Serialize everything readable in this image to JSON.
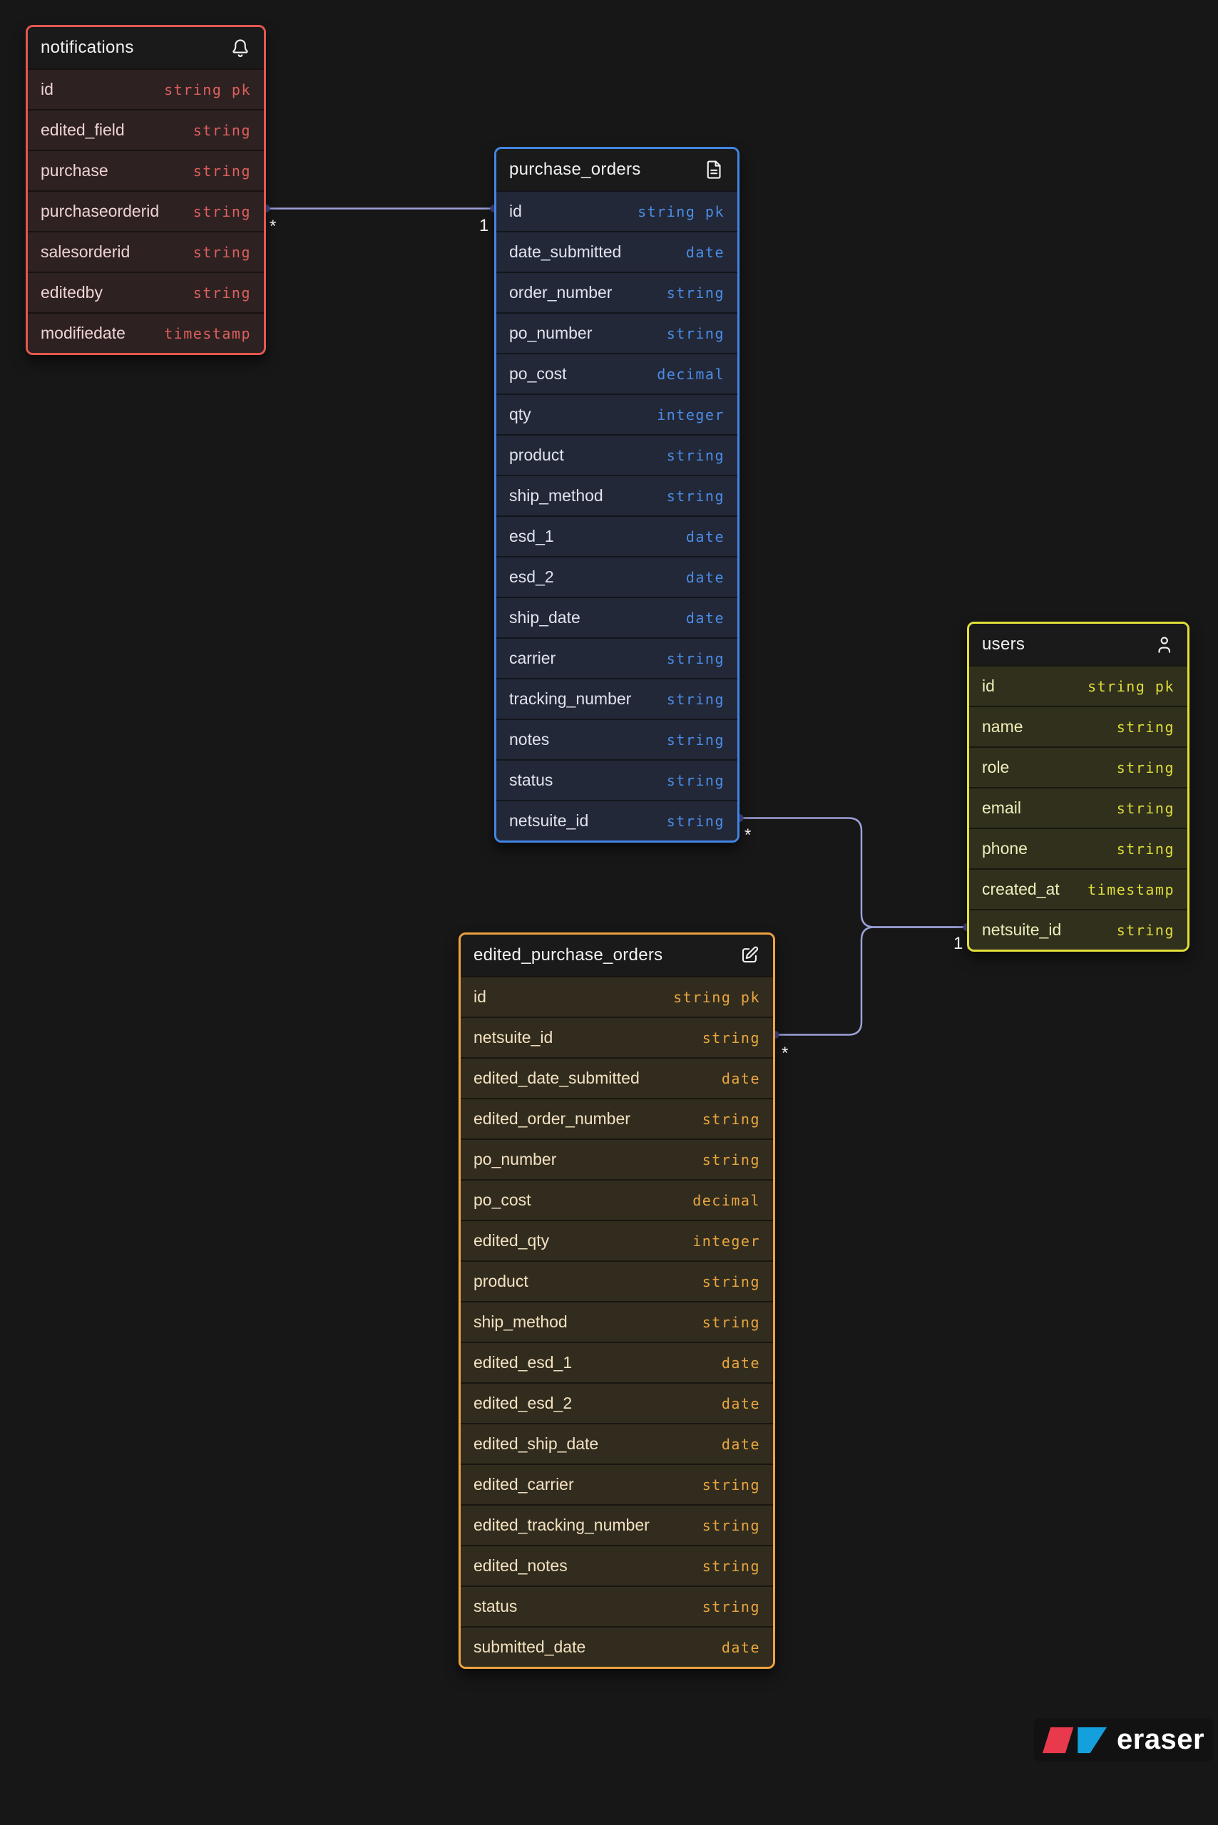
{
  "canvas": {
    "background": "#171717",
    "tool_brand": "eraser"
  },
  "tables": [
    {
      "title": "notifications",
      "icon": "bell-icon",
      "colors": {
        "accent": "#e4574f",
        "row_bg": "#2d2122",
        "field": "#efd2d1",
        "type": "#de605c"
      },
      "fields": [
        {
          "name": "id",
          "type": "string pk"
        },
        {
          "name": "edited_field",
          "type": "string"
        },
        {
          "name": "purchase",
          "type": "string"
        },
        {
          "name": "purchaseorderid",
          "type": "string"
        },
        {
          "name": "salesorderid",
          "type": "string"
        },
        {
          "name": "editedby",
          "type": "string"
        },
        {
          "name": "modifiedate",
          "type": "timestamp"
        }
      ]
    },
    {
      "title": "purchase_orders",
      "icon": "file-icon",
      "colors": {
        "accent": "#4285e4",
        "row_bg": "#222837",
        "field": "#dfe4ee",
        "type": "#4c8ce8"
      },
      "fields": [
        {
          "name": "id",
          "type": "string pk"
        },
        {
          "name": "date_submitted",
          "type": "date"
        },
        {
          "name": "order_number",
          "type": "string"
        },
        {
          "name": "po_number",
          "type": "string"
        },
        {
          "name": "po_cost",
          "type": "decimal"
        },
        {
          "name": "qty",
          "type": "integer"
        },
        {
          "name": "product",
          "type": "string"
        },
        {
          "name": "ship_method",
          "type": "string"
        },
        {
          "name": "esd_1",
          "type": "date"
        },
        {
          "name": "esd_2",
          "type": "date"
        },
        {
          "name": "ship_date",
          "type": "date"
        },
        {
          "name": "carrier",
          "type": "string"
        },
        {
          "name": "tracking_number",
          "type": "string"
        },
        {
          "name": "notes",
          "type": "string"
        },
        {
          "name": "status",
          "type": "string"
        },
        {
          "name": "netsuite_id",
          "type": "string"
        }
      ]
    },
    {
      "title": "users",
      "icon": "user-icon",
      "colors": {
        "accent": "#e2df39",
        "row_bg": "#30301d",
        "field": "#f0edbb",
        "type": "#e0dd3a"
      },
      "fields": [
        {
          "name": "id",
          "type": "string pk"
        },
        {
          "name": "name",
          "type": "string"
        },
        {
          "name": "role",
          "type": "string"
        },
        {
          "name": "email",
          "type": "string"
        },
        {
          "name": "phone",
          "type": "string"
        },
        {
          "name": "created_at",
          "type": "timestamp"
        },
        {
          "name": "netsuite_id",
          "type": "string"
        }
      ]
    },
    {
      "title": "edited_purchase_orders",
      "icon": "edit-icon",
      "colors": {
        "accent": "#efa23e",
        "row_bg": "#322c1e",
        "field": "#f3e2c2",
        "type": "#e9a63f"
      },
      "fields": [
        {
          "name": "id",
          "type": "string pk"
        },
        {
          "name": "netsuite_id",
          "type": "string"
        },
        {
          "name": "edited_date_submitted",
          "type": "date"
        },
        {
          "name": "edited_order_number",
          "type": "string"
        },
        {
          "name": "po_number",
          "type": "string"
        },
        {
          "name": "po_cost",
          "type": "decimal"
        },
        {
          "name": "edited_qty",
          "type": "integer"
        },
        {
          "name": "product",
          "type": "string"
        },
        {
          "name": "ship_method",
          "type": "string"
        },
        {
          "name": "edited_esd_1",
          "type": "date"
        },
        {
          "name": "edited_esd_2",
          "type": "date"
        },
        {
          "name": "edited_ship_date",
          "type": "date"
        },
        {
          "name": "edited_carrier",
          "type": "string"
        },
        {
          "name": "edited_tracking_number",
          "type": "string"
        },
        {
          "name": "edited_notes",
          "type": "string"
        },
        {
          "name": "status",
          "type": "string"
        },
        {
          "name": "submitted_date",
          "type": "date"
        }
      ]
    }
  ],
  "relationships": [
    {
      "from": "notifications.purchaseorderid",
      "to": "purchase_orders.id",
      "from_cardinality": "*",
      "to_cardinality": "1"
    },
    {
      "from": "purchase_orders.netsuite_id",
      "to": "users.netsuite_id",
      "from_cardinality": "*",
      "to_cardinality": "1"
    },
    {
      "from": "edited_purchase_orders.netsuite_id",
      "to": "users.netsuite_id",
      "from_cardinality": "*",
      "to_cardinality": "1"
    }
  ],
  "watermark": {
    "brand": "eraser",
    "logo_red": "#e8394d",
    "logo_blue": "#14a0dc"
  }
}
